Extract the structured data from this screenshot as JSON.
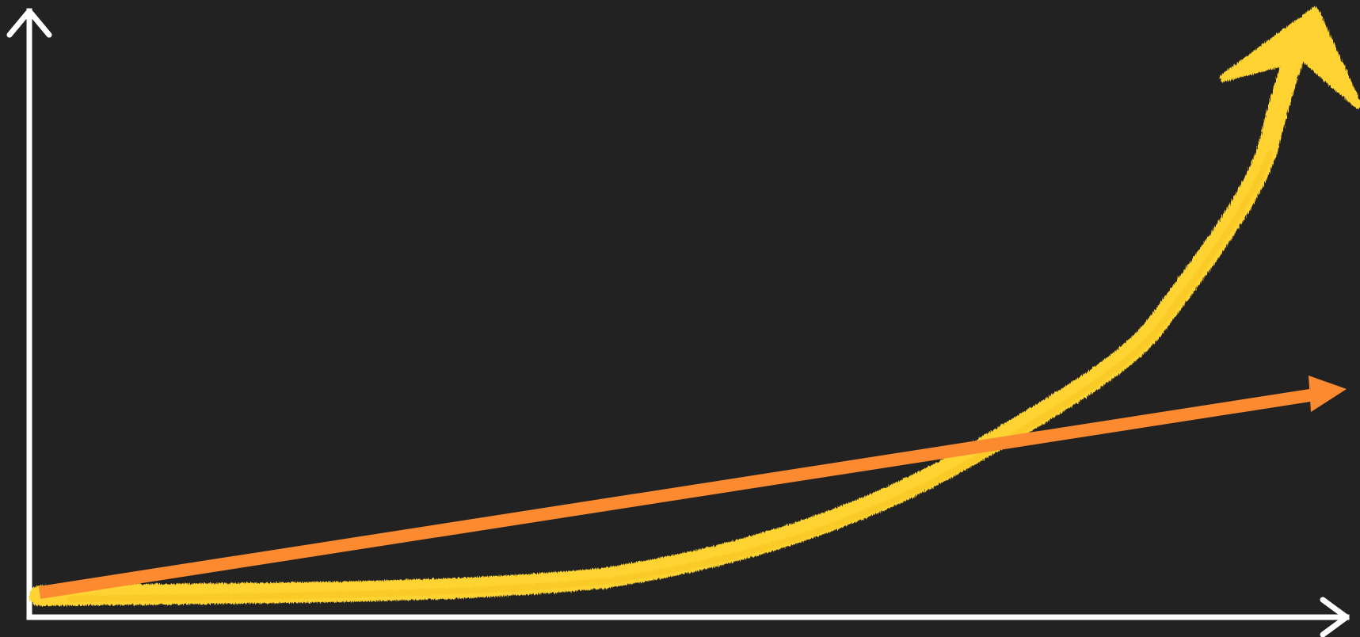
{
  "diagram": {
    "kind": "growth-comparison-sketch",
    "background_color": "#222222",
    "axis_color": "#ffffff",
    "curves": [
      {
        "id": "exponential",
        "shape": "exponential",
        "style": "chalk-brush",
        "color": "#fed332"
      },
      {
        "id": "linear",
        "shape": "linear",
        "style": "solid-arrow",
        "color": "#fc8a31"
      }
    ]
  }
}
